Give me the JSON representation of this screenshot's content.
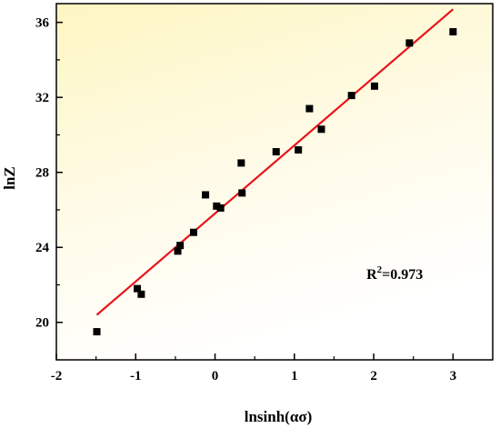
{
  "chart_data": {
    "type": "scatter",
    "xlabel": "lnsinh(ασ)",
    "ylabel": "lnZ",
    "xlim": [
      -2,
      3.5
    ],
    "ylim": [
      18,
      37
    ],
    "xticks": [
      -2,
      -1,
      0,
      1,
      2,
      3
    ],
    "yticks": [
      20,
      24,
      28,
      32,
      36
    ],
    "grid": false,
    "background": "yellow-gradient",
    "points": [
      {
        "x": -1.49,
        "y": 19.5
      },
      {
        "x": -0.98,
        "y": 21.8
      },
      {
        "x": -0.93,
        "y": 21.5
      },
      {
        "x": -0.47,
        "y": 23.8
      },
      {
        "x": -0.44,
        "y": 24.1
      },
      {
        "x": -0.27,
        "y": 24.8
      },
      {
        "x": -0.12,
        "y": 26.8
      },
      {
        "x": 0.02,
        "y": 26.2
      },
      {
        "x": 0.07,
        "y": 26.1
      },
      {
        "x": 0.33,
        "y": 28.5
      },
      {
        "x": 0.34,
        "y": 26.9
      },
      {
        "x": 0.77,
        "y": 29.1
      },
      {
        "x": 1.05,
        "y": 29.2
      },
      {
        "x": 1.19,
        "y": 31.4
      },
      {
        "x": 1.34,
        "y": 30.3
      },
      {
        "x": 1.72,
        "y": 32.1
      },
      {
        "x": 2.01,
        "y": 32.6
      },
      {
        "x": 2.45,
        "y": 34.9
      },
      {
        "x": 3.0,
        "y": 35.5
      }
    ],
    "fit_line": {
      "x": [
        -1.49,
        3.0
      ],
      "y": [
        20.4,
        36.7
      ]
    },
    "annotation": {
      "base": "R",
      "sup": "2",
      "text": "=0.973",
      "x": 2.0,
      "y": 22.6
    },
    "colors": {
      "points": "#000000",
      "fit_line": "#e8141a",
      "bg_top": "#fdf7c8",
      "bg_bottom": "#ffffff"
    }
  }
}
